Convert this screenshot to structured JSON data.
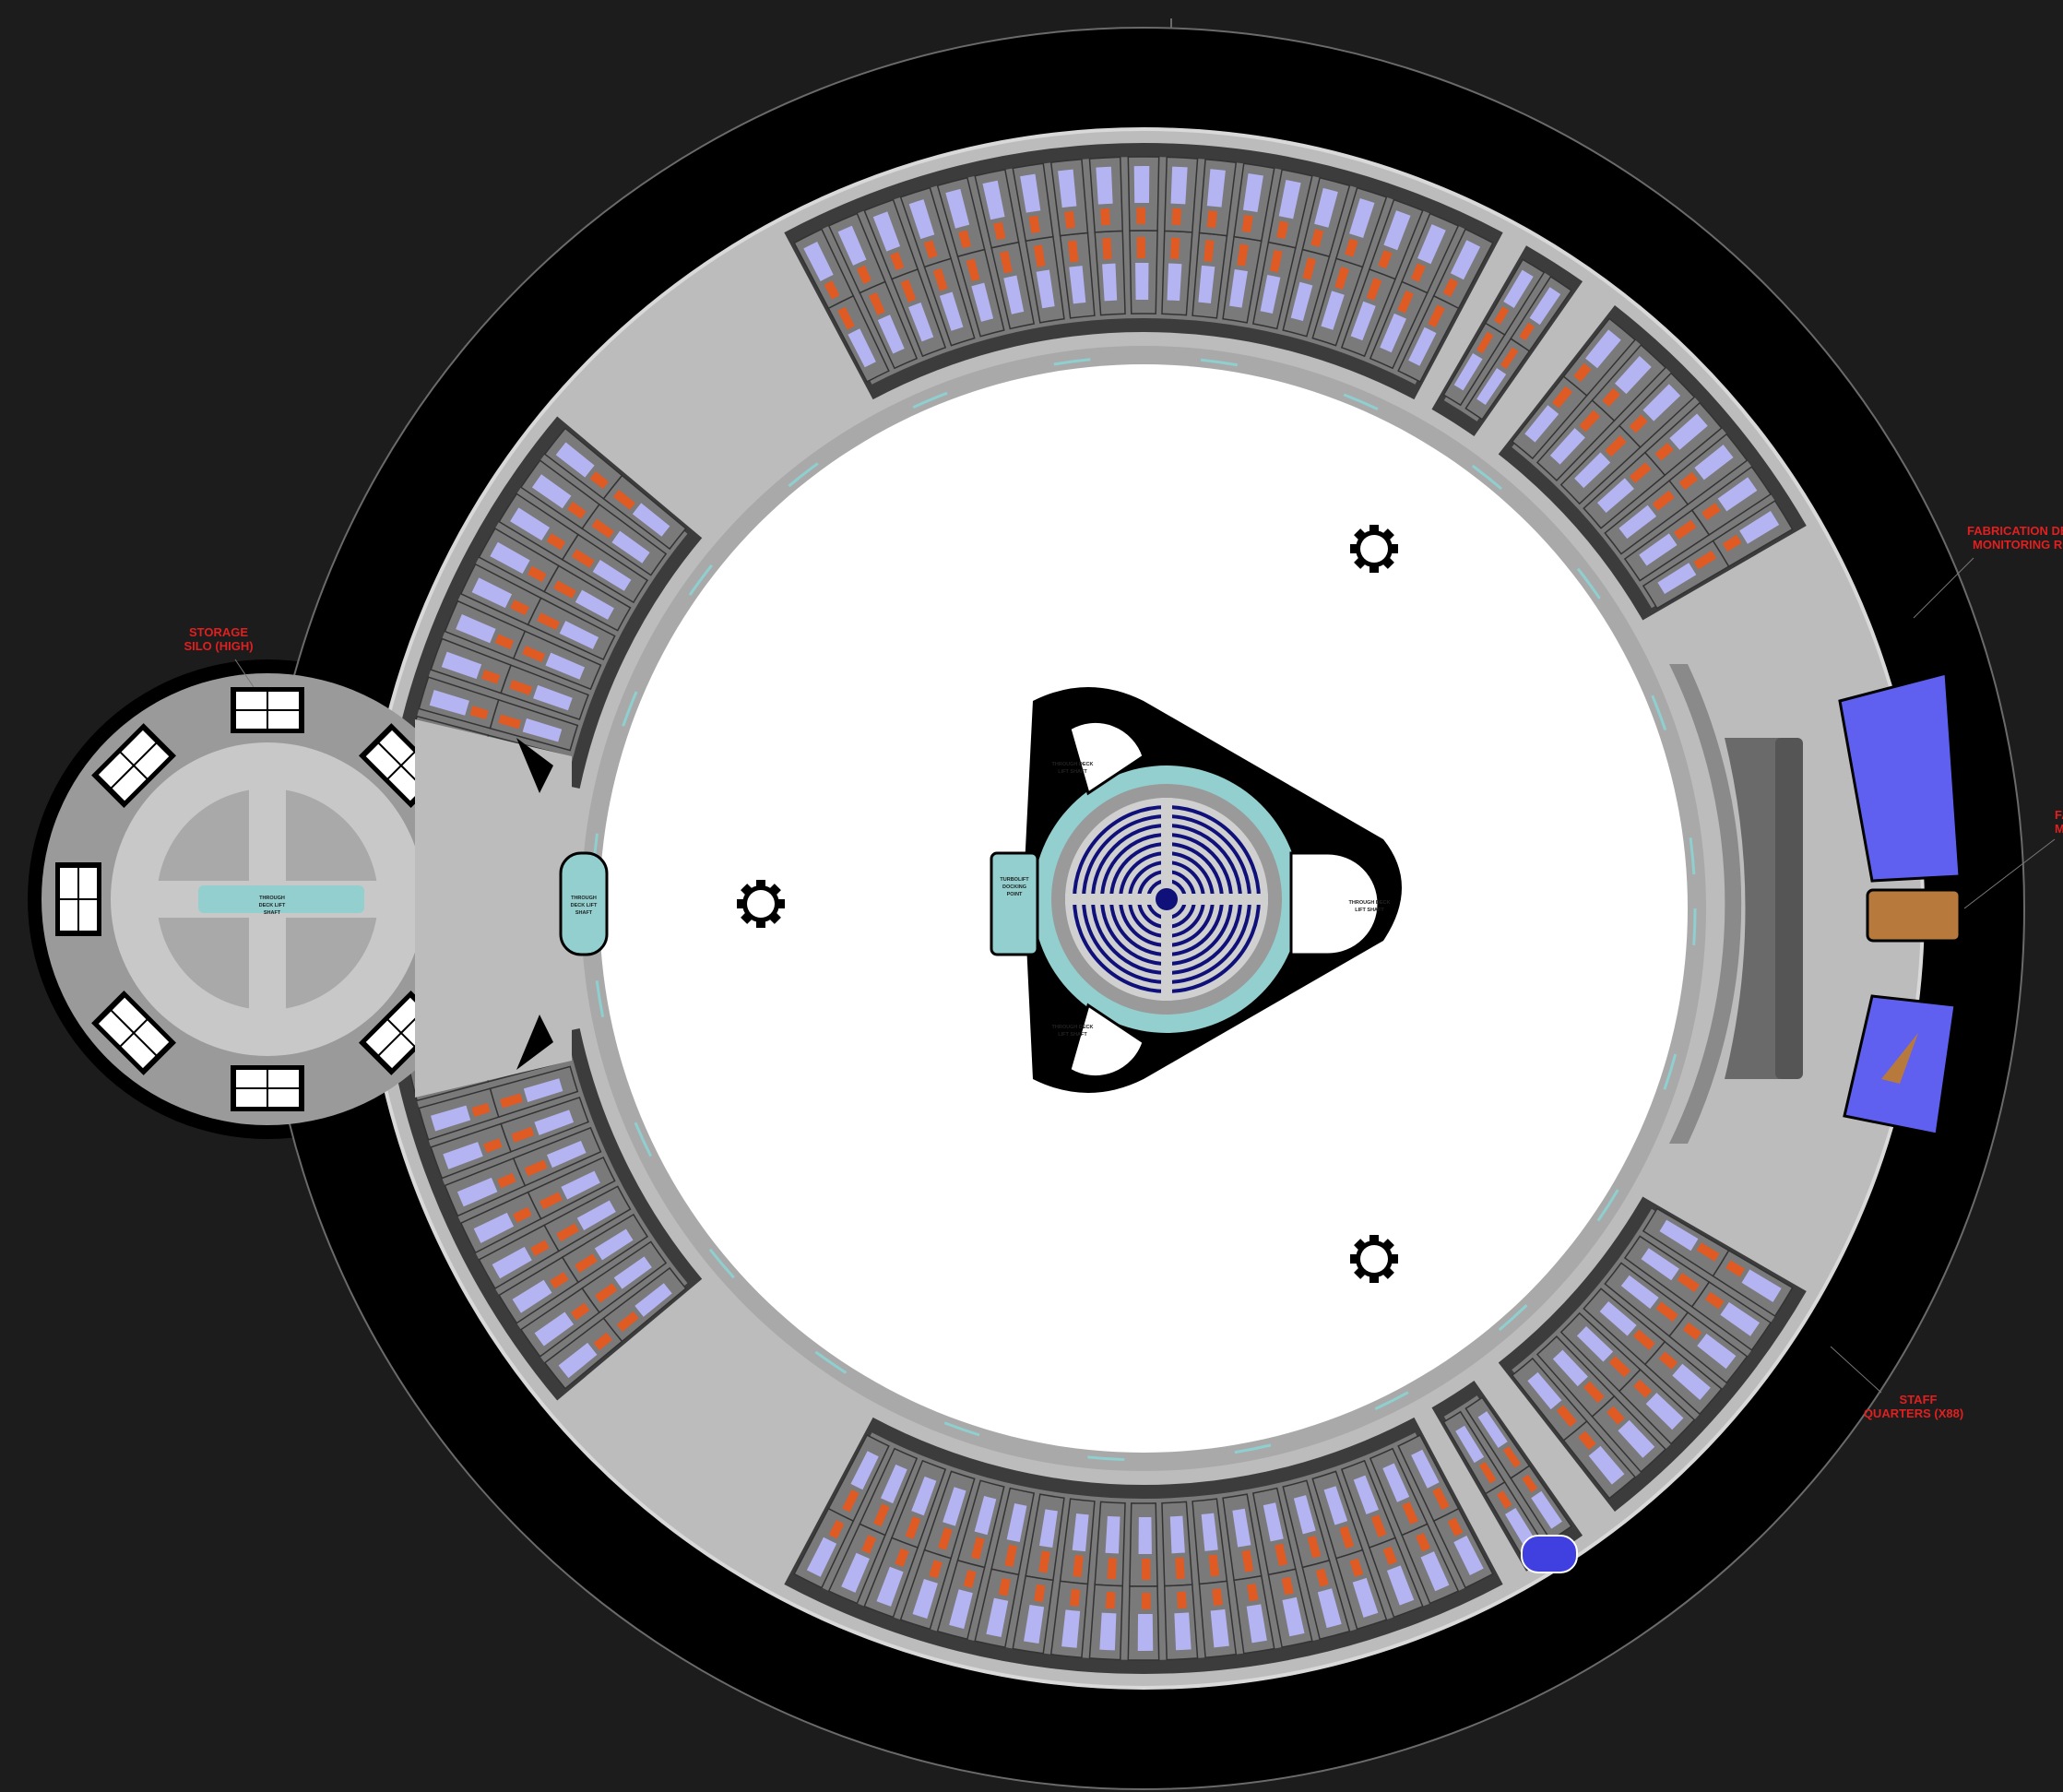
{
  "colors": {
    "background": "#1c1c1c",
    "hull": "#000000",
    "corridor": "#c4c4c4",
    "room_floor": "#7a7a7a",
    "room_wall": "#3c3c3c",
    "bed": "#b4b4f2",
    "desk": "#e05a24",
    "central_void": "#ffffff",
    "teal": "#93cfcf",
    "navy": "#10107a",
    "blue_room": "#6060f0",
    "wood_table": "#b87a3c",
    "label_red": "#e02020"
  },
  "annotations": {
    "storage_silo": [
      "STORAGE",
      "SILO (HIGH)"
    ],
    "fab_monitoring": [
      "FABRICATION DECK",
      "MONITORING ROOM"
    ],
    "fab_cut": [
      "FA",
      "M"
    ],
    "staff_quarters": [
      "STAFF",
      "QUARTERS (X88)"
    ]
  },
  "shaft_labels": {
    "through_deck_lift": [
      "THROUGH",
      "DECK LIFT",
      "SHAFT"
    ],
    "through_deck_lift_2": [
      "THROUGH DECK",
      "LIFT SHAFT"
    ],
    "turbolift_docking": [
      "TURBOLIFT",
      "DOCKING",
      "POINT"
    ]
  },
  "icons": {
    "shaft": "gear-ring-icon",
    "stairs": "stairwell-icon",
    "pool": "pool-icon",
    "core": "concentric-ring-core-icon"
  }
}
